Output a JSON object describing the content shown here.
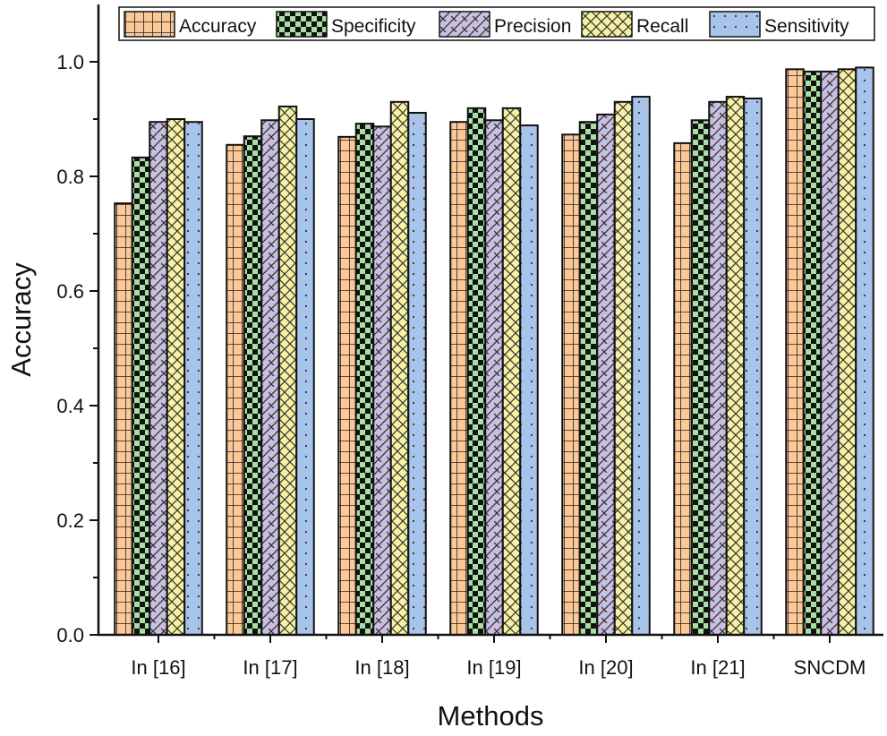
{
  "chart_data": {
    "type": "bar",
    "title": "",
    "xlabel": "Methods",
    "ylabel": "Accuracy",
    "ylim": [
      0,
      1.1
    ],
    "yticks": [
      "0.0",
      "0.2",
      "0.4",
      "0.6",
      "0.8",
      "1.0"
    ],
    "grid": false,
    "legend_position": "top",
    "categories": [
      "In [16]",
      "In [17]",
      "In [18]",
      "In [19]",
      "In [20]",
      "In [21]",
      "SNCDM"
    ],
    "series": [
      {
        "name": "Accuracy",
        "color": "#fdc897",
        "pattern": "grid",
        "values": [
          0.753,
          0.855,
          0.869,
          0.895,
          0.873,
          0.858,
          0.987
        ]
      },
      {
        "name": "Specificity",
        "color": "#a8dfa3",
        "pattern": "checker",
        "values": [
          0.833,
          0.87,
          0.892,
          0.919,
          0.895,
          0.898,
          0.983
        ]
      },
      {
        "name": "Precision",
        "color": "#c9bfe0",
        "pattern": "diagonal",
        "values": [
          0.895,
          0.898,
          0.887,
          0.898,
          0.908,
          0.93,
          0.983
        ]
      },
      {
        "name": "Recall",
        "color": "#f7f2a3",
        "pattern": "crosshatch",
        "values": [
          0.9,
          0.922,
          0.93,
          0.919,
          0.93,
          0.939,
          0.987
        ]
      },
      {
        "name": "Sensitivity",
        "color": "#a9c4ea",
        "pattern": "dots",
        "values": [
          0.895,
          0.9,
          0.911,
          0.889,
          0.939,
          0.936,
          0.99
        ]
      }
    ]
  }
}
